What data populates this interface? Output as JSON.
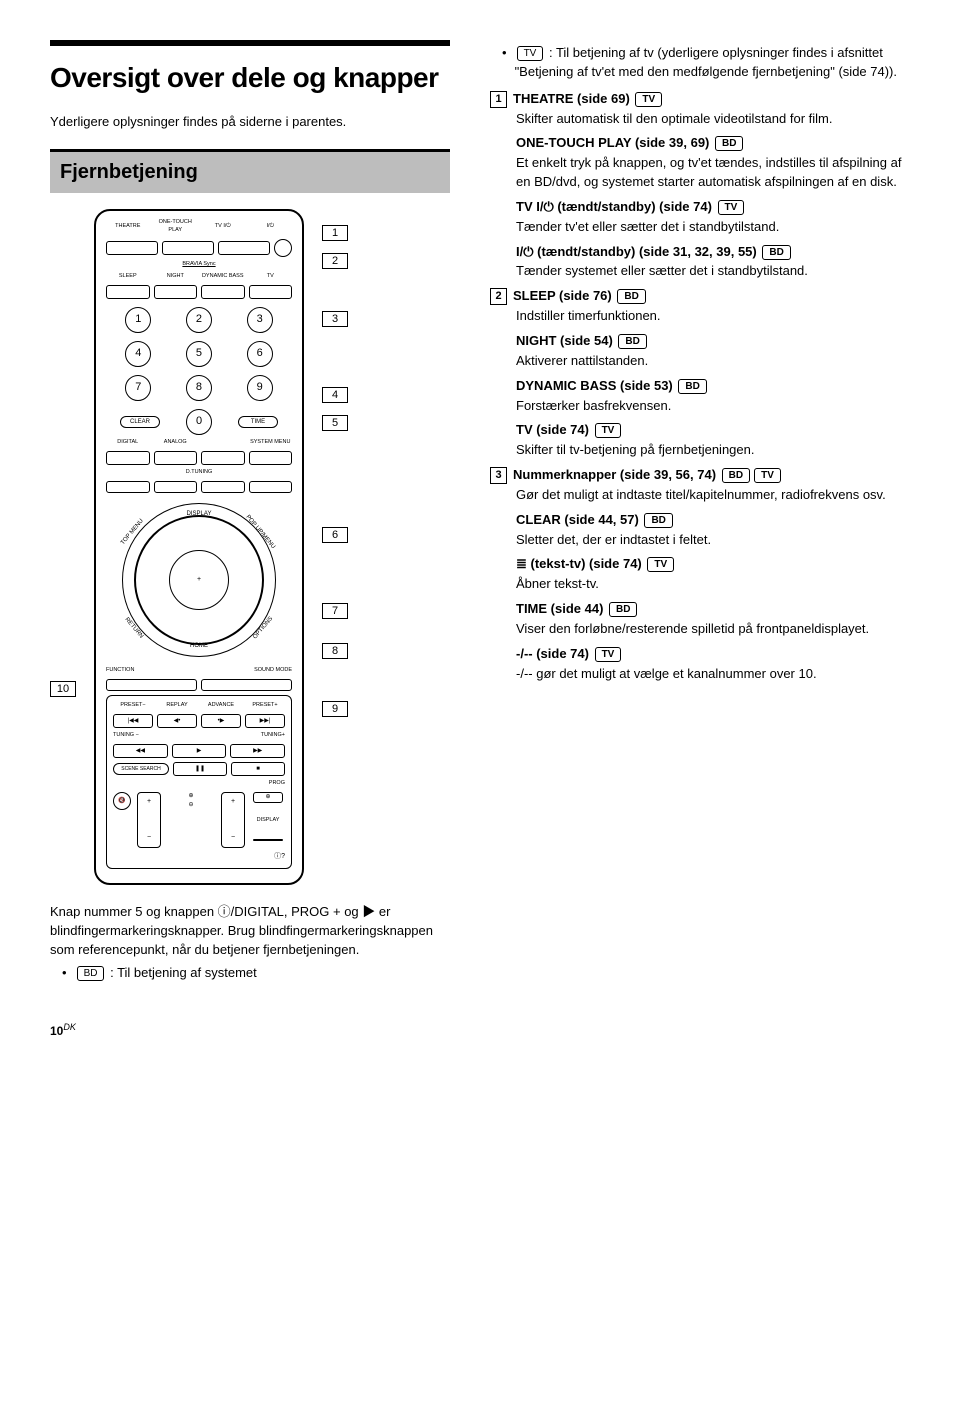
{
  "heading": "Oversigt over dele og knapper",
  "intro": "Yderligere oplysninger findes på siderne i parentes.",
  "section_title": "Fjernbetjening",
  "remote": {
    "row1": {
      "theatre": "THEATRE",
      "onetouch": "ONE-TOUCH PLAY",
      "tvpwr": "TV I/⏻",
      "pwr": "I/⏻"
    },
    "bravia": "BRAVIA Sync",
    "row2": {
      "sleep": "SLEEP",
      "night": "NIGHT",
      "bass": "DYNAMIC BASS",
      "tv": "TV"
    },
    "nums": [
      "1",
      "2",
      "3",
      "4",
      "5",
      "6",
      "7",
      "8",
      "9",
      "0"
    ],
    "clear": "CLEAR",
    "time": "TIME",
    "row4": {
      "digital": "DIGITAL",
      "analog": "ANALOG",
      "sysmenu": "SYSTEM MENU"
    },
    "dtuning": "D.TUNING",
    "wheel": {
      "display": "DISPLAY",
      "topmenu": "TOP MENU",
      "popup": "POP UP/MENU",
      "return": "RETURN",
      "options": "OPTIONS",
      "home": "HOME"
    },
    "func": "FUNCTION",
    "sound": "SOUND MODE",
    "trans": {
      "presetm": "PRESET−",
      "replay": "REPLAY",
      "advance": "ADVANCE",
      "presetp": "PRESET+",
      "tuningm": "TUNING −",
      "tuningp": "TUNING+"
    },
    "scene": "SCENE SEARCH",
    "prog": "PROG",
    "display2": "DISPLAY"
  },
  "callouts_right": [
    "1",
    "2",
    "3",
    "4",
    "5",
    "6",
    "7",
    "8",
    "9"
  ],
  "callouts_left": [
    "10"
  ],
  "caption": "Knap nummer 5 og knappen ⓘ/DIGITAL, PROG + og ▶ er blindfingermarkeringsknapper. Brug blindfingermarkeringsknappen som referencepunkt, når du betjener fjernbetjeningen.",
  "bullet_bd": ": Til betjening af systemet",
  "bullet_tv": ": Til betjening af tv (yderligere oplysninger findes i afsnittet \"Betjening af tv'et med den medfølgende fjernbetjening\" (side 74)).",
  "tags": {
    "bd": "BD",
    "tv": "TV"
  },
  "entries": [
    {
      "num": "1",
      "items": [
        {
          "title": "THEATRE (side 69)",
          "tags": [
            "TV"
          ],
          "body": "Skifter automatisk til den optimale videotilstand for film."
        },
        {
          "title": "ONE-TOUCH PLAY (side 39, 69)",
          "tags": [
            "BD"
          ],
          "body": "Et enkelt tryk på knappen, og tv'et tændes, indstilles til afspilning af en BD/dvd, og systemet starter automatisk afspilningen af en disk."
        },
        {
          "title": "TV I/⏻ (tændt/standby) (side 74)",
          "tags": [
            "TV"
          ],
          "body": "Tænder tv'et eller sætter det i standbytilstand."
        },
        {
          "title": "I/⏻ (tændt/standby) (side 31, 32, 39, 55)",
          "tags": [
            "BD"
          ],
          "body": "Tænder systemet eller sætter det i standbytilstand."
        }
      ]
    },
    {
      "num": "2",
      "items": [
        {
          "title": "SLEEP (side 76)",
          "tags": [
            "BD"
          ],
          "body": "Indstiller timerfunktionen."
        },
        {
          "title": "NIGHT (side 54)",
          "tags": [
            "BD"
          ],
          "body": "Aktiverer nattilstanden."
        },
        {
          "title": "DYNAMIC BASS (side 53)",
          "tags": [
            "BD"
          ],
          "body": "Forstærker basfrekvensen."
        },
        {
          "title": "TV (side 74)",
          "tags": [
            "TV"
          ],
          "body": "Skifter til tv-betjening på fjernbetjeningen."
        }
      ]
    },
    {
      "num": "3",
      "items": [
        {
          "title": "Nummerknapper (side 39, 56, 74)",
          "tags": [
            "BD",
            "TV"
          ],
          "body": "Gør det muligt at indtaste titel/kapitelnummer, radiofrekvens osv."
        },
        {
          "title": "CLEAR (side 44, 57)",
          "tags": [
            "BD"
          ],
          "body": "Sletter det, der er indtastet i feltet."
        },
        {
          "title": "≣ (tekst-tv) (side 74)",
          "tags": [
            "TV"
          ],
          "body": "Åbner tekst-tv."
        },
        {
          "title": "TIME (side 44)",
          "tags": [
            "BD"
          ],
          "body": "Viser den forløbne/resterende spilletid på frontpaneldisplayet."
        },
        {
          "title": "-/-- (side 74)",
          "tags": [
            "TV"
          ],
          "body": "-/-- gør det muligt at vælge et kanalnummer over 10."
        }
      ]
    }
  ],
  "page_number": "10",
  "page_suffix": "DK"
}
